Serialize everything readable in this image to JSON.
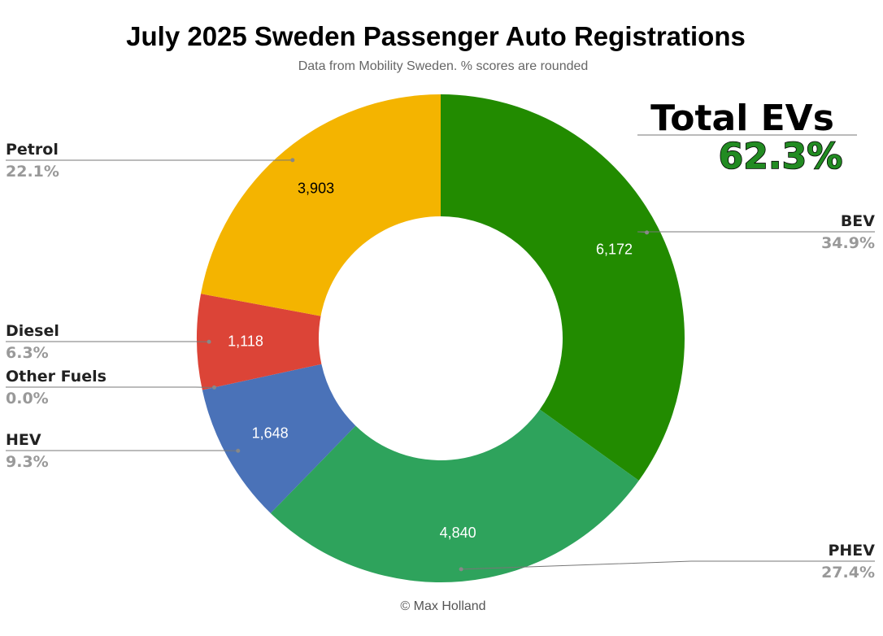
{
  "chart_data": {
    "type": "pie",
    "title": "July 2025 Sweden Passenger Auto Registrations",
    "subtitle": "Data from Mobility Sweden. % scores are rounded",
    "credit": "© Max Holland",
    "donut": true,
    "slices": [
      {
        "name": "BEV",
        "value": 6172,
        "value_label": "6,172",
        "percent": "34.9%",
        "color": "#228B00"
      },
      {
        "name": "PHEV",
        "value": 4840,
        "value_label": "4,840",
        "percent": "27.4%",
        "color": "#2EA35C"
      },
      {
        "name": "HEV",
        "value": 1648,
        "value_label": "1,648",
        "percent": "9.3%",
        "color": "#4A72B8"
      },
      {
        "name": "Other Fuels",
        "value": 0,
        "value_label": "",
        "percent": "0.0%",
        "color": "#999999"
      },
      {
        "name": "Diesel",
        "value": 1118,
        "value_label": "1,118",
        "percent": "6.3%",
        "color": "#DC4437"
      },
      {
        "name": "Petrol",
        "value": 3903,
        "value_label": "3,903",
        "percent": "22.1%",
        "color": "#F4B400"
      }
    ]
  },
  "annotation": {
    "label": "Total EVs",
    "value": "62.3%",
    "value_color": "#228B22"
  }
}
